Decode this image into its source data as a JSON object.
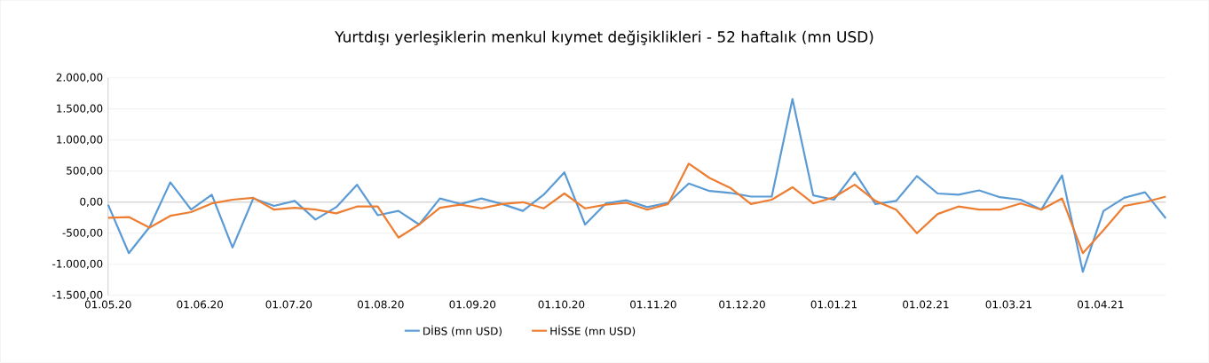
{
  "chart_data": {
    "type": "line",
    "title": "Yurtdışı yerleşiklerin menkul kıymet değişiklikleri - 52 haftalık (mn USD)",
    "x": [
      "2020-05-01",
      "2020-05-08",
      "2020-05-15",
      "2020-05-22",
      "2020-05-29",
      "2020-06-05",
      "2020-06-12",
      "2020-06-19",
      "2020-06-26",
      "2020-07-03",
      "2020-07-10",
      "2020-07-17",
      "2020-07-24",
      "2020-07-31",
      "2020-08-07",
      "2020-08-14",
      "2020-08-21",
      "2020-08-28",
      "2020-09-04",
      "2020-09-11",
      "2020-09-18",
      "2020-09-25",
      "2020-10-02",
      "2020-10-09",
      "2020-10-16",
      "2020-10-23",
      "2020-10-30",
      "2020-11-06",
      "2020-11-13",
      "2020-11-20",
      "2020-11-27",
      "2020-12-04",
      "2020-12-11",
      "2020-12-18",
      "2020-12-25",
      "2021-01-01",
      "2021-01-08",
      "2021-01-15",
      "2021-01-22",
      "2021-01-29",
      "2021-02-05",
      "2021-02-12",
      "2021-02-19",
      "2021-02-26",
      "2021-03-05",
      "2021-03-12",
      "2021-03-19",
      "2021-03-26",
      "2021-04-02",
      "2021-04-09",
      "2021-04-16",
      "2021-04-23"
    ],
    "series": [
      {
        "name": "DİBS (mn USD)",
        "color": "#5b9bd5",
        "values": [
          -40,
          -820,
          -400,
          320,
          -120,
          120,
          -730,
          60,
          -60,
          20,
          -280,
          -80,
          280,
          -210,
          -140,
          -360,
          60,
          -30,
          60,
          -30,
          -140,
          120,
          480,
          -360,
          -20,
          30,
          -80,
          -10,
          300,
          180,
          150,
          90,
          90,
          1660,
          110,
          40,
          480,
          -30,
          20,
          420,
          140,
          120,
          190,
          80,
          40,
          -120,
          430,
          -1120,
          -140,
          70,
          160,
          -260
        ]
      },
      {
        "name": "HİSSE (mn USD)",
        "color": "#ed7d31",
        "values": [
          -250,
          -240,
          -410,
          -220,
          -160,
          -20,
          40,
          70,
          -120,
          -90,
          -120,
          -180,
          -70,
          -70,
          -570,
          -360,
          -90,
          -40,
          -100,
          -30,
          0,
          -100,
          140,
          -100,
          -40,
          -10,
          -120,
          -30,
          620,
          390,
          230,
          -30,
          40,
          240,
          -20,
          80,
          280,
          20,
          -120,
          -500,
          -190,
          -70,
          -120,
          -120,
          -20,
          -120,
          60,
          -820,
          -450,
          -60,
          0,
          90
        ]
      }
    ],
    "xlim": [
      "2020-05-01",
      "2021-04-23"
    ],
    "xticks": [
      {
        "value": "2020-05-01",
        "label": "01.05.20"
      },
      {
        "value": "2020-06-01",
        "label": "01.06.20"
      },
      {
        "value": "2020-07-01",
        "label": "01.07.20"
      },
      {
        "value": "2020-08-01",
        "label": "01.08.20"
      },
      {
        "value": "2020-09-01",
        "label": "01.09.20"
      },
      {
        "value": "2020-10-01",
        "label": "01.10.20"
      },
      {
        "value": "2020-11-01",
        "label": "01.11.20"
      },
      {
        "value": "2020-12-01",
        "label": "01.12.20"
      },
      {
        "value": "2021-01-01",
        "label": "01.01.21"
      },
      {
        "value": "2021-02-01",
        "label": "01.02.21"
      },
      {
        "value": "2021-03-01",
        "label": "01.03.21"
      },
      {
        "value": "2021-04-01",
        "label": "01.04.21"
      }
    ],
    "ylim": [
      -1500,
      2000
    ],
    "yticks": [
      {
        "value": -1500,
        "label": "-1.500,00"
      },
      {
        "value": -1000,
        "label": "-1.000,00"
      },
      {
        "value": -500,
        "label": "-500,00"
      },
      {
        "value": 0,
        "label": "0,00"
      },
      {
        "value": 500,
        "label": "500,00"
      },
      {
        "value": 1000,
        "label": "1.000,00"
      },
      {
        "value": 1500,
        "label": "1.500,00"
      },
      {
        "value": 2000,
        "label": "2.000,00"
      }
    ],
    "grid": "y",
    "legend": "bottom",
    "marker": "none",
    "line_style": "solid"
  }
}
